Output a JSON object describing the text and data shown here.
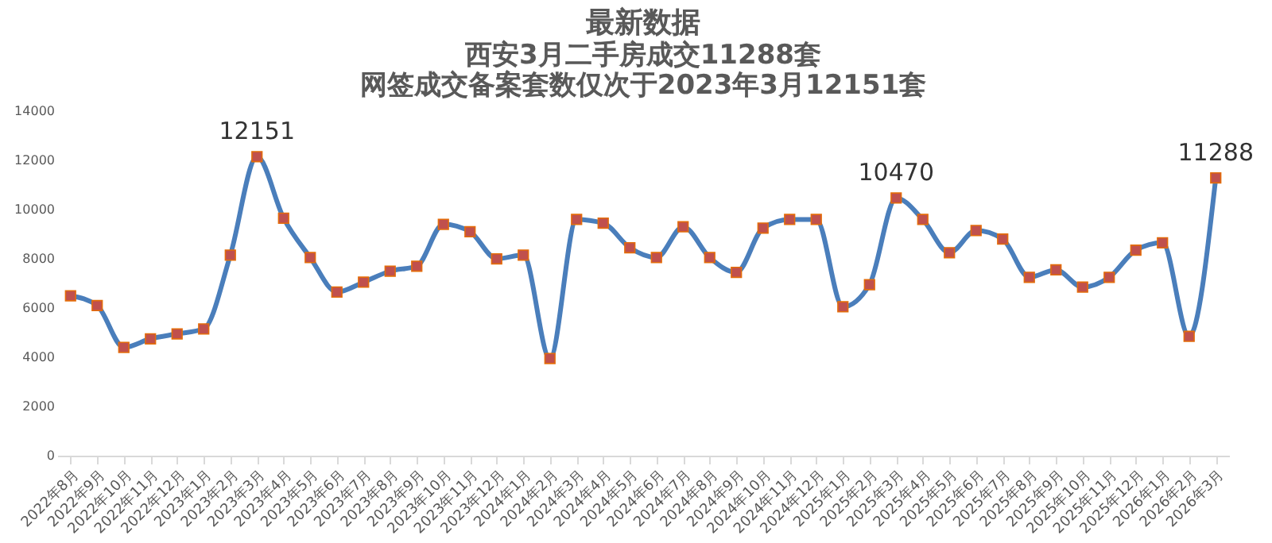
{
  "chart_data": {
    "type": "line",
    "title": "最新数据",
    "subtitle": "西安3月二手房成交11288套",
    "annotations": [
      "网签成交备案套数仅次于2023年3月12151套"
    ],
    "categories": [
      "2022年8月",
      "2022年9月",
      "2022年10月",
      "2022年11月",
      "2022年12月",
      "2023年1月",
      "2023年2月",
      "2023年3月",
      "2023年4月",
      "2023年5月",
      "2023年6月",
      "2023年7月",
      "2023年8月",
      "2023年9月",
      "2023年10月",
      "2023年11月",
      "2023年12月",
      "2024年1月",
      "2024年2月",
      "2024年3月",
      "2024年4月",
      "2024年5月",
      "2024年6月",
      "2024年7月",
      "2024年8月",
      "2024年9月",
      "2024年10月",
      "2024年11月",
      "2024年12月",
      "2025年1月",
      "2025年2月",
      "2025年3月",
      "2025年4月",
      "2025年5月",
      "2025年6月",
      "2025年7月",
      "2025年8月",
      "2025年9月",
      "2025年10月",
      "2025年11月",
      "2025年12月",
      "2026年1月",
      "2026年2月",
      "2026年3月"
    ],
    "series": [
      {
        "color": "#4a7ebb",
        "values": [
          6500,
          6100,
          4400,
          4750,
          4950,
          5150,
          8150,
          12151,
          9650,
          8050,
          6650,
          7050,
          7500,
          7700,
          9400,
          9100,
          8000,
          8150,
          3950,
          9600,
          9450,
          8450,
          8050,
          9300,
          8050,
          7450,
          9250,
          9600,
          9600,
          6050,
          6950,
          10470,
          9600,
          8250,
          9150,
          8800,
          7250,
          7550,
          6850,
          7250,
          8350,
          8650,
          4850,
          11288
        ],
        "value_labels": [
          null,
          null,
          null,
          null,
          null,
          null,
          null,
          "12151",
          null,
          null,
          null,
          null,
          null,
          null,
          null,
          null,
          null,
          null,
          null,
          null,
          null,
          null,
          null,
          null,
          null,
          null,
          null,
          null,
          null,
          null,
          null,
          "10470",
          null,
          null,
          null,
          null,
          null,
          null,
          null,
          null,
          null,
          null,
          null,
          "11288"
        ]
      }
    ],
    "marker": "square",
    "line_style": "solid",
    "ylim": [
      0,
      14000
    ],
    "yticks": [
      0,
      2000,
      4000,
      6000,
      8000,
      10000,
      12000,
      14000
    ],
    "grid": false
  }
}
